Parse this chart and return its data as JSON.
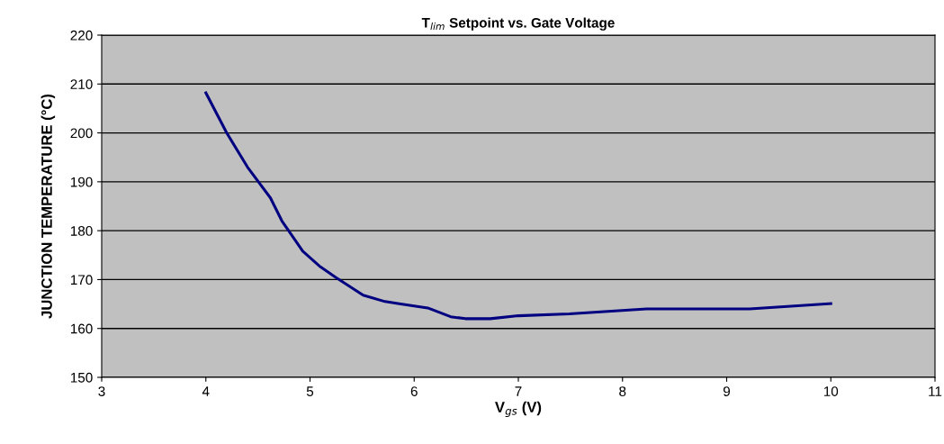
{
  "chart_data": {
    "type": "line",
    "title": "T$_{lim}$ Setpoint vs. Gate Voltage",
    "xlabel": "V$_{gs}$ (V)",
    "ylabel": "JUNCTION TEMPERATURE (°C)",
    "x": [
      4.0,
      4.2,
      4.4,
      4.62,
      4.73,
      4.93,
      5.1,
      5.25,
      5.51,
      5.72,
      5.87,
      6.13,
      6.35,
      6.49,
      6.73,
      7.0,
      7.49,
      8.23,
      9.22,
      10.0
    ],
    "series": [
      {
        "color": "#000080",
        "values": [
          208.2,
          200,
          193,
          186.7,
          182,
          175.8,
          172.6,
          170.4,
          166.8,
          165.5,
          165,
          164.2,
          162.4,
          162,
          162,
          162.6,
          163,
          164,
          164,
          165.1
        ]
      }
    ],
    "xlim": [
      3,
      11
    ],
    "xticks": [
      3,
      4,
      5,
      6,
      7,
      8,
      9,
      10,
      11
    ],
    "ylim": [
      150,
      220
    ],
    "yticks": [
      150,
      160,
      170,
      180,
      190,
      200,
      210,
      220
    ],
    "grid": "y",
    "legend": false,
    "marker": "none",
    "line_style": "solid"
  }
}
